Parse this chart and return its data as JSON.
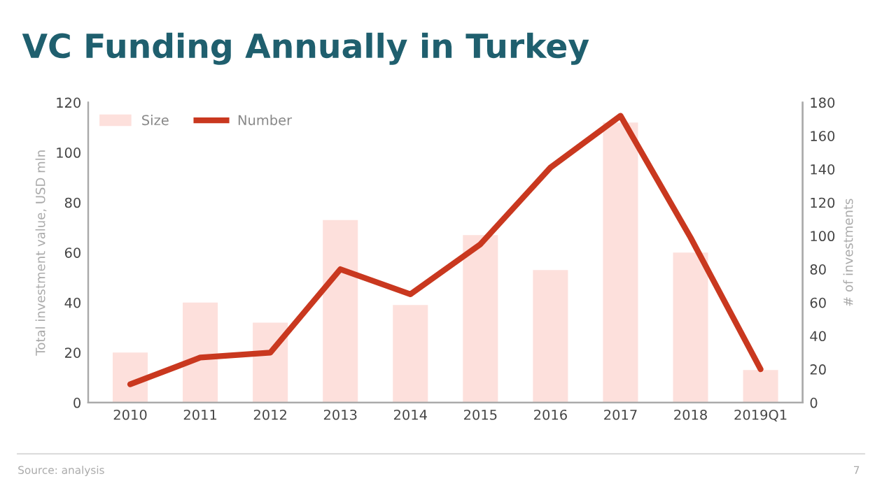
{
  "chart_data": {
    "type": "bar",
    "title": "VC Funding Annually in Turkey",
    "ylabel": "Total investment value, USD mln",
    "y2label": "# of investments",
    "categories": [
      "2010",
      "2011",
      "2012",
      "2013",
      "2014",
      "2015",
      "2016",
      "2017",
      "2018",
      "2019Q1"
    ],
    "series": [
      {
        "name": "Size",
        "color": "#fde0dc",
        "values": [
          20,
          40,
          32,
          73,
          39,
          67,
          53,
          112,
          60,
          13
        ]
      },
      {
        "name": "Number",
        "type": "line",
        "axis": "y2",
        "color": "#c9381f",
        "values": [
          11,
          27,
          30,
          80,
          65,
          95,
          141,
          172,
          99,
          20
        ]
      }
    ],
    "ylim": [
      0,
      120
    ],
    "yticks": [
      0,
      20,
      40,
      60,
      80,
      100,
      120
    ],
    "y2lim": [
      0,
      180
    ],
    "y2ticks": [
      0,
      20,
      40,
      60,
      80,
      100,
      120,
      140,
      160,
      180
    ],
    "legend": "top left",
    "grid": false,
    "annotations": [
      "Source: analysis",
      "7"
    ]
  }
}
